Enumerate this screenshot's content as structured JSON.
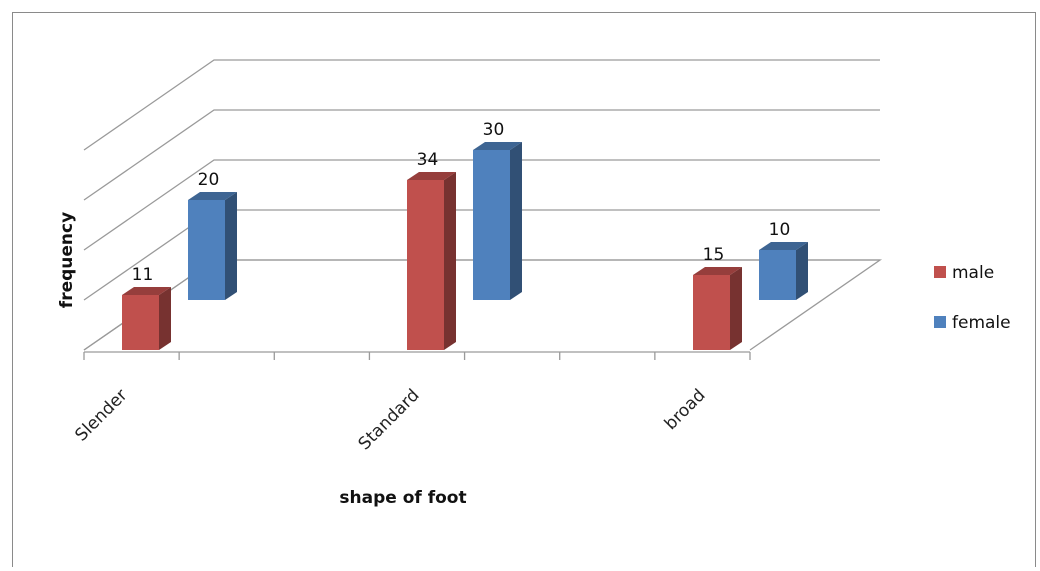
{
  "chart_data": {
    "type": "bar",
    "title": "",
    "xlabel": "shape of foot",
    "ylabel": "frequency",
    "categories": [
      "Slender",
      "Standard",
      "broad"
    ],
    "series": [
      {
        "name": "male",
        "values": [
          11,
          34,
          15
        ],
        "color": "#c0504d"
      },
      {
        "name": "female",
        "values": [
          20,
          30,
          10
        ],
        "color": "#4f81bd"
      }
    ],
    "ylim": [
      0,
      40
    ],
    "grid": true,
    "legend_position": "right",
    "style": "3d-clustered-column"
  }
}
